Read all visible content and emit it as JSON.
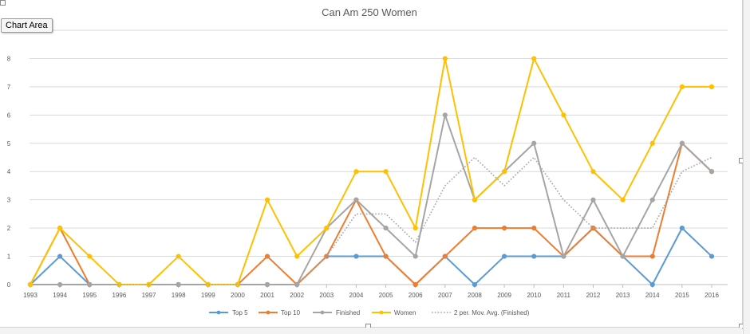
{
  "tooltip": "Chart Area",
  "chart_data": {
    "type": "line",
    "title": "Can Am 250 Women",
    "xlabel": "",
    "ylabel": "",
    "categories": [
      "1993",
      "1994",
      "1995",
      "1996",
      "1997",
      "1998",
      "1999",
      "2000",
      "2001",
      "2002",
      "2003",
      "2004",
      "2005",
      "2006",
      "2007",
      "2008",
      "2009",
      "2010",
      "2011",
      "2012",
      "2013",
      "2014",
      "2015",
      "2016"
    ],
    "ylim": [
      0,
      9
    ],
    "yticks": [
      0,
      1,
      2,
      3,
      4,
      5,
      6,
      7,
      8
    ],
    "grid": true,
    "legend_position": "bottom",
    "series": [
      {
        "name": "Top 5",
        "color": "#5b9bd5",
        "style": "solid",
        "marker": true,
        "values": [
          0,
          1,
          0,
          0,
          0,
          0,
          0,
          0,
          0,
          0,
          1,
          1,
          1,
          0,
          1,
          0,
          1,
          1,
          1,
          2,
          1,
          0,
          2,
          1
        ]
      },
      {
        "name": "Top 10",
        "color": "#ed7d31",
        "style": "solid",
        "marker": true,
        "values": [
          0,
          2,
          0,
          0,
          0,
          0,
          0,
          0,
          1,
          0,
          1,
          3,
          1,
          0,
          1,
          2,
          2,
          2,
          1,
          2,
          1,
          1,
          5,
          4
        ]
      },
      {
        "name": "Finished",
        "color": "#a5a5a5",
        "style": "solid",
        "marker": true,
        "values": [
          0,
          0,
          0,
          0,
          0,
          0,
          0,
          0,
          0,
          0,
          2,
          3,
          2,
          1,
          6,
          3,
          4,
          5,
          1,
          3,
          1,
          3,
          5,
          4
        ]
      },
      {
        "name": "Women",
        "color": "#ffc000",
        "style": "solid",
        "marker": true,
        "values": [
          0,
          2,
          1,
          0,
          0,
          1,
          0,
          0,
          3,
          1,
          2,
          4,
          4,
          2,
          8,
          3,
          4,
          8,
          6,
          4,
          3,
          5,
          7,
          7
        ]
      },
      {
        "name": "2 per. Mov. Avg.  (Finished)",
        "color": "#a5a5a5",
        "style": "dotted",
        "marker": false,
        "values": [
          null,
          0,
          0,
          0,
          0,
          0,
          0,
          0,
          0,
          0,
          1,
          2.5,
          2.5,
          1.5,
          3.5,
          4.5,
          3.5,
          4.5,
          3,
          2,
          2,
          2,
          4,
          4.5
        ]
      }
    ]
  }
}
